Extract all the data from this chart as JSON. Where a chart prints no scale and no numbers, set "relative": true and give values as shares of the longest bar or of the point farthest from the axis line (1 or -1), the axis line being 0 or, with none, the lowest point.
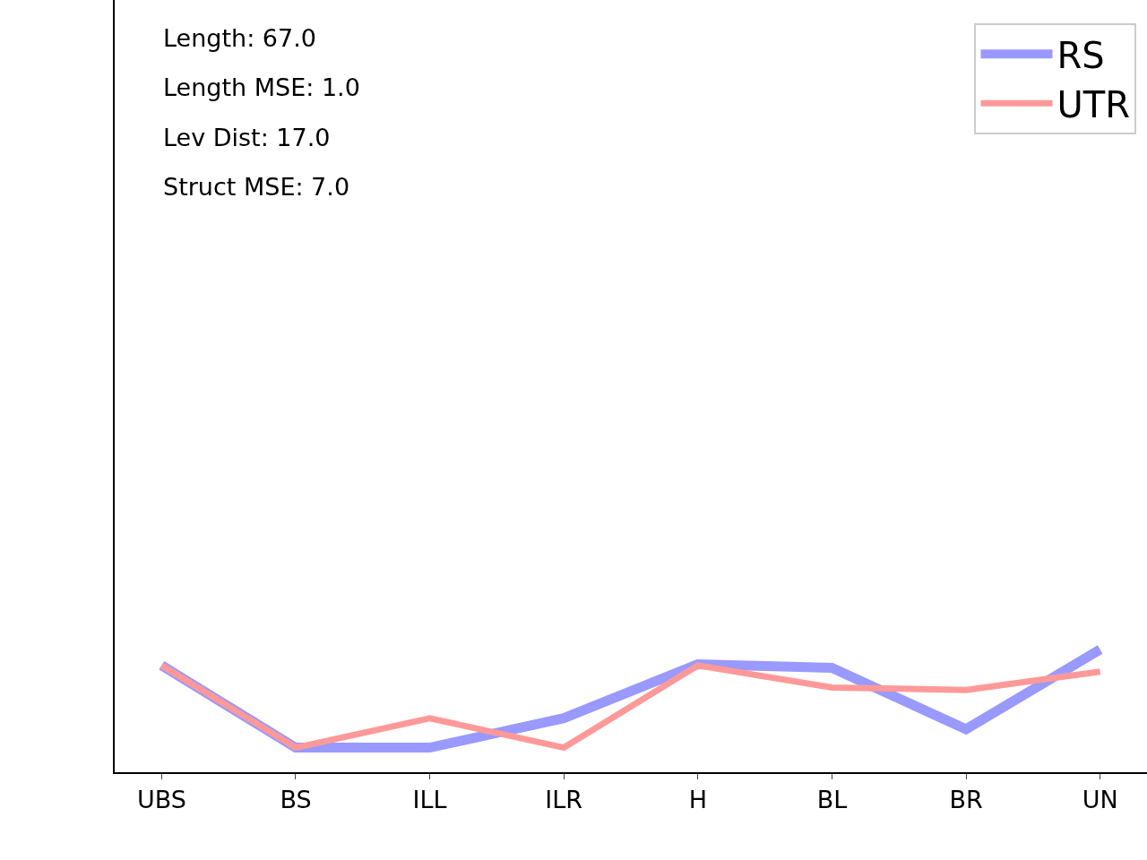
{
  "chart_data": {
    "type": "line",
    "relative": true,
    "categories": [
      "UBS",
      "BS",
      "ILL",
      "ILR",
      "H",
      "BL",
      "BR",
      "UN"
    ],
    "series": [
      {
        "name": "RS",
        "color": "#9999ff",
        "values": [
          0.87,
          0.2,
          0.2,
          0.44,
          0.88,
          0.85,
          0.35,
          1.0
        ]
      },
      {
        "name": "UTR",
        "color": "#ff9999",
        "values": [
          0.87,
          0.2,
          0.44,
          0.2,
          0.87,
          0.69,
          0.67,
          0.82
        ]
      }
    ],
    "annotations": [
      "Length: 67.0",
      "Length MSE: 1.0",
      "Lev Dist: 17.0",
      "Struct MSE: 7.0"
    ],
    "legend": "top right",
    "marker": "none",
    "line_style": "solid"
  }
}
